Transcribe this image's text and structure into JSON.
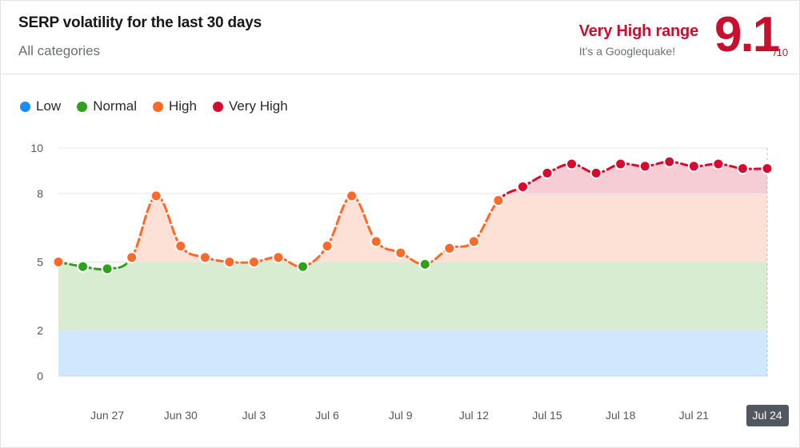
{
  "header": {
    "title": "SERP volatility for the last 30 days",
    "subtitle": "All categories",
    "range_label": "Very High range",
    "range_note": "It’s a Googlequake!",
    "score": "9.1",
    "score_max": "/10"
  },
  "legend": [
    {
      "label": "Low",
      "color": "#1a8cff"
    },
    {
      "label": "Normal",
      "color": "#2fa11e"
    },
    {
      "label": "High",
      "color": "#ff6a2c"
    },
    {
      "label": "Very High",
      "color": "#d50b30"
    }
  ],
  "chart_data": {
    "type": "line",
    "title": "SERP volatility for the last 30 days",
    "ylim": [
      0,
      10
    ],
    "y_ticks": [
      0,
      2,
      5,
      8,
      10
    ],
    "x_tick_labels": [
      "Jun 27",
      "Jun 30",
      "Jul 3",
      "Jul 6",
      "Jul 9",
      "Jul 12",
      "Jul 15",
      "Jul 18",
      "Jul 21",
      "Jul 24"
    ],
    "highlighted_x": "Jul 24",
    "bands": [
      {
        "name": "Low",
        "from": 0,
        "to": 2,
        "color": "#cfe8fd"
      },
      {
        "name": "Normal",
        "from": 2,
        "to": 5,
        "color": "#d8ecd2"
      },
      {
        "name": "High",
        "from": 5,
        "to": 8,
        "color": "#fde0d6"
      },
      {
        "name": "Very High",
        "from": 8,
        "to": 10,
        "color": "#f6ccd5"
      }
    ],
    "series": [
      {
        "x": [
          "Jun 25",
          "Jun 26",
          "Jun 27",
          "Jun 28",
          "Jun 29",
          "Jun 30",
          "Jul 1",
          "Jul 2",
          "Jul 3",
          "Jul 4",
          "Jul 5",
          "Jul 6",
          "Jul 7",
          "Jul 8",
          "Jul 9",
          "Jul 10",
          "Jul 11",
          "Jul 12",
          "Jul 13",
          "Jul 14",
          "Jul 15",
          "Jul 16",
          "Jul 17",
          "Jul 18",
          "Jul 19",
          "Jul 20",
          "Jul 21",
          "Jul 22",
          "Jul 23",
          "Jul 24"
        ],
        "values": [
          5.0,
          4.8,
          4.7,
          5.2,
          7.9,
          5.7,
          5.2,
          5.0,
          5.0,
          5.2,
          4.8,
          5.7,
          7.9,
          5.9,
          5.4,
          4.9,
          5.6,
          5.9,
          7.7,
          8.3,
          8.9,
          9.3,
          8.9,
          9.3,
          9.2,
          9.4,
          9.2,
          9.3,
          9.1,
          9.1
        ]
      }
    ]
  }
}
